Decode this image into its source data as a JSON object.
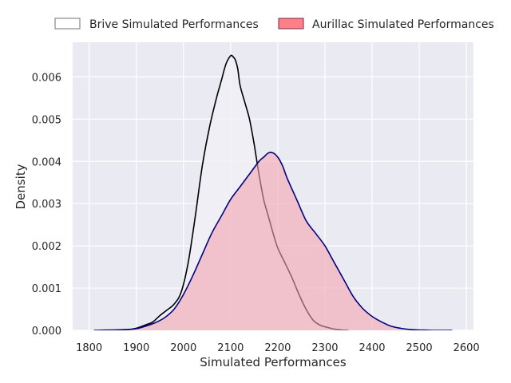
{
  "chart_data": {
    "type": "area",
    "title": "",
    "xlabel": "Simulated Performances",
    "ylabel": "Density",
    "xlim": [
      1765,
      2615
    ],
    "ylim": [
      0,
      0.00682
    ],
    "x_ticks": [
      1800,
      1900,
      2000,
      2100,
      2200,
      2300,
      2400,
      2500,
      2600
    ],
    "y_ticks": [
      0.0,
      0.001,
      0.002,
      0.003,
      0.004,
      0.005,
      0.006
    ],
    "x_tick_labels": [
      "1800",
      "1900",
      "2000",
      "2100",
      "2200",
      "2300",
      "2400",
      "2500",
      "2600"
    ],
    "y_tick_labels": [
      "0.000",
      "0.001",
      "0.002",
      "0.003",
      "0.004",
      "0.005",
      "0.006"
    ],
    "grid": true,
    "legend_position": "top-center",
    "series": [
      {
        "name": "Brive Simulated Performances",
        "fill_color": "#f1f0f6",
        "line_color": "#000000",
        "x": [
          1850,
          1880,
          1900,
          1920,
          1935,
          1950,
          1965,
          1980,
          1995,
          2010,
          2025,
          2040,
          2055,
          2070,
          2080,
          2090,
          2100,
          2105,
          2110,
          2115,
          2120,
          2130,
          2140,
          2150,
          2160,
          2170,
          2180,
          2190,
          2200,
          2215,
          2230,
          2245,
          2260,
          2275,
          2290,
          2305,
          2320,
          2335,
          2350
        ],
        "y": [
          0.0,
          1e-05,
          5e-05,
          0.00013,
          0.0002,
          0.00035,
          0.00048,
          0.00062,
          0.0009,
          0.0016,
          0.0027,
          0.0039,
          0.0048,
          0.0055,
          0.0059,
          0.0063,
          0.0065,
          0.00648,
          0.0064,
          0.0062,
          0.0058,
          0.0054,
          0.005,
          0.0044,
          0.0037,
          0.0031,
          0.0027,
          0.0023,
          0.00195,
          0.0016,
          0.00125,
          0.00085,
          0.0005,
          0.00024,
          0.00012,
          7e-05,
          3e-05,
          1e-05,
          0.0
        ]
      },
      {
        "name": "Aurillac Simulated Performances",
        "fill_color": "#f4a3b0",
        "line_color": "#000080",
        "x": [
          1810,
          1850,
          1880,
          1900,
          1920,
          1940,
          1960,
          1980,
          2000,
          2020,
          2040,
          2060,
          2080,
          2100,
          2120,
          2140,
          2160,
          2170,
          2180,
          2190,
          2200,
          2210,
          2220,
          2240,
          2260,
          2280,
          2300,
          2320,
          2340,
          2360,
          2380,
          2400,
          2420,
          2440,
          2460,
          2480,
          2500,
          2530,
          2570
        ],
        "y": [
          0.0,
          1e-05,
          2e-05,
          4e-05,
          0.0001,
          0.00018,
          0.0003,
          0.0005,
          0.00085,
          0.0013,
          0.0018,
          0.0023,
          0.0027,
          0.0031,
          0.0034,
          0.0037,
          0.004,
          0.0041,
          0.0042,
          0.0042,
          0.0041,
          0.0039,
          0.0036,
          0.0031,
          0.0026,
          0.0023,
          0.002,
          0.0016,
          0.0012,
          0.0008,
          0.00052,
          0.00033,
          0.0002,
          0.0001,
          5e-05,
          2e-05,
          1e-05,
          0.0,
          0.0
        ]
      }
    ]
  }
}
